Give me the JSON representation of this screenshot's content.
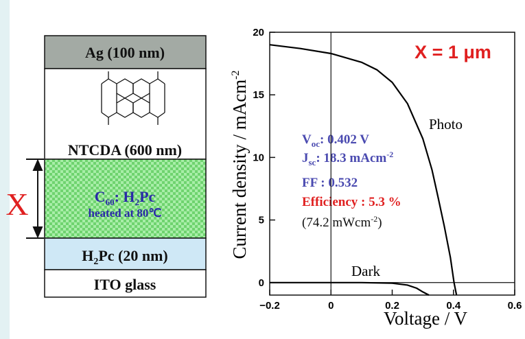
{
  "diagram": {
    "layers": [
      {
        "label": [
          "Ag (100 nm)"
        ]
      },
      {
        "label": [
          "NTCDA (600 nm)"
        ]
      },
      {
        "label": [
          "C",
          "60",
          ": H",
          "2",
          "Pc"
        ],
        "note": "heated at 80℃"
      },
      {
        "label": [
          "H",
          "2",
          "Pc (20 nm)"
        ]
      },
      {
        "label": [
          "ITO glass"
        ]
      }
    ],
    "thickness_label": "X"
  },
  "chart_data": {
    "type": "line",
    "x_label": "Voltage / V",
    "y_label": [
      "Current density / mAcm",
      "-2"
    ],
    "xlim": [
      -0.2,
      0.6
    ],
    "ylim": [
      -1,
      20
    ],
    "xticks": [
      {
        "value": -0.2,
        "label": "−0.2"
      },
      0,
      0.2,
      0.4,
      0.6
    ],
    "yticks": [
      0,
      5,
      10,
      15,
      20
    ],
    "series": [
      {
        "name": "Photo",
        "color": "#000000",
        "x": [
          -0.2,
          -0.1,
          0,
          0.1,
          0.15,
          0.2,
          0.25,
          0.3,
          0.33,
          0.35,
          0.37,
          0.39,
          0.402,
          0.41
        ],
        "values": [
          19.0,
          18.7,
          18.3,
          17.6,
          17.0,
          16.0,
          14.3,
          11.5,
          9.0,
          6.8,
          4.5,
          2.0,
          0,
          -1
        ]
      },
      {
        "name": "Dark",
        "color": "#000000",
        "x": [
          -0.2,
          0.1,
          0.2,
          0.25,
          0.28,
          0.3,
          0.32
        ],
        "values": [
          0,
          0,
          -0.05,
          -0.2,
          -0.45,
          -0.75,
          -1
        ]
      }
    ],
    "title": "X = 1 μm",
    "parameters": {
      "voc": [
        "V",
        "oc",
        ": 0.402 V"
      ],
      "jsc": [
        "J",
        "sc",
        ": 18.3 mAcm",
        "-2"
      ],
      "ff": "FF : 0.532",
      "efficiency": "Efficiency : 5.3 %",
      "intensity": [
        "(74.2 mWcm",
        "-2",
        ")"
      ]
    }
  }
}
